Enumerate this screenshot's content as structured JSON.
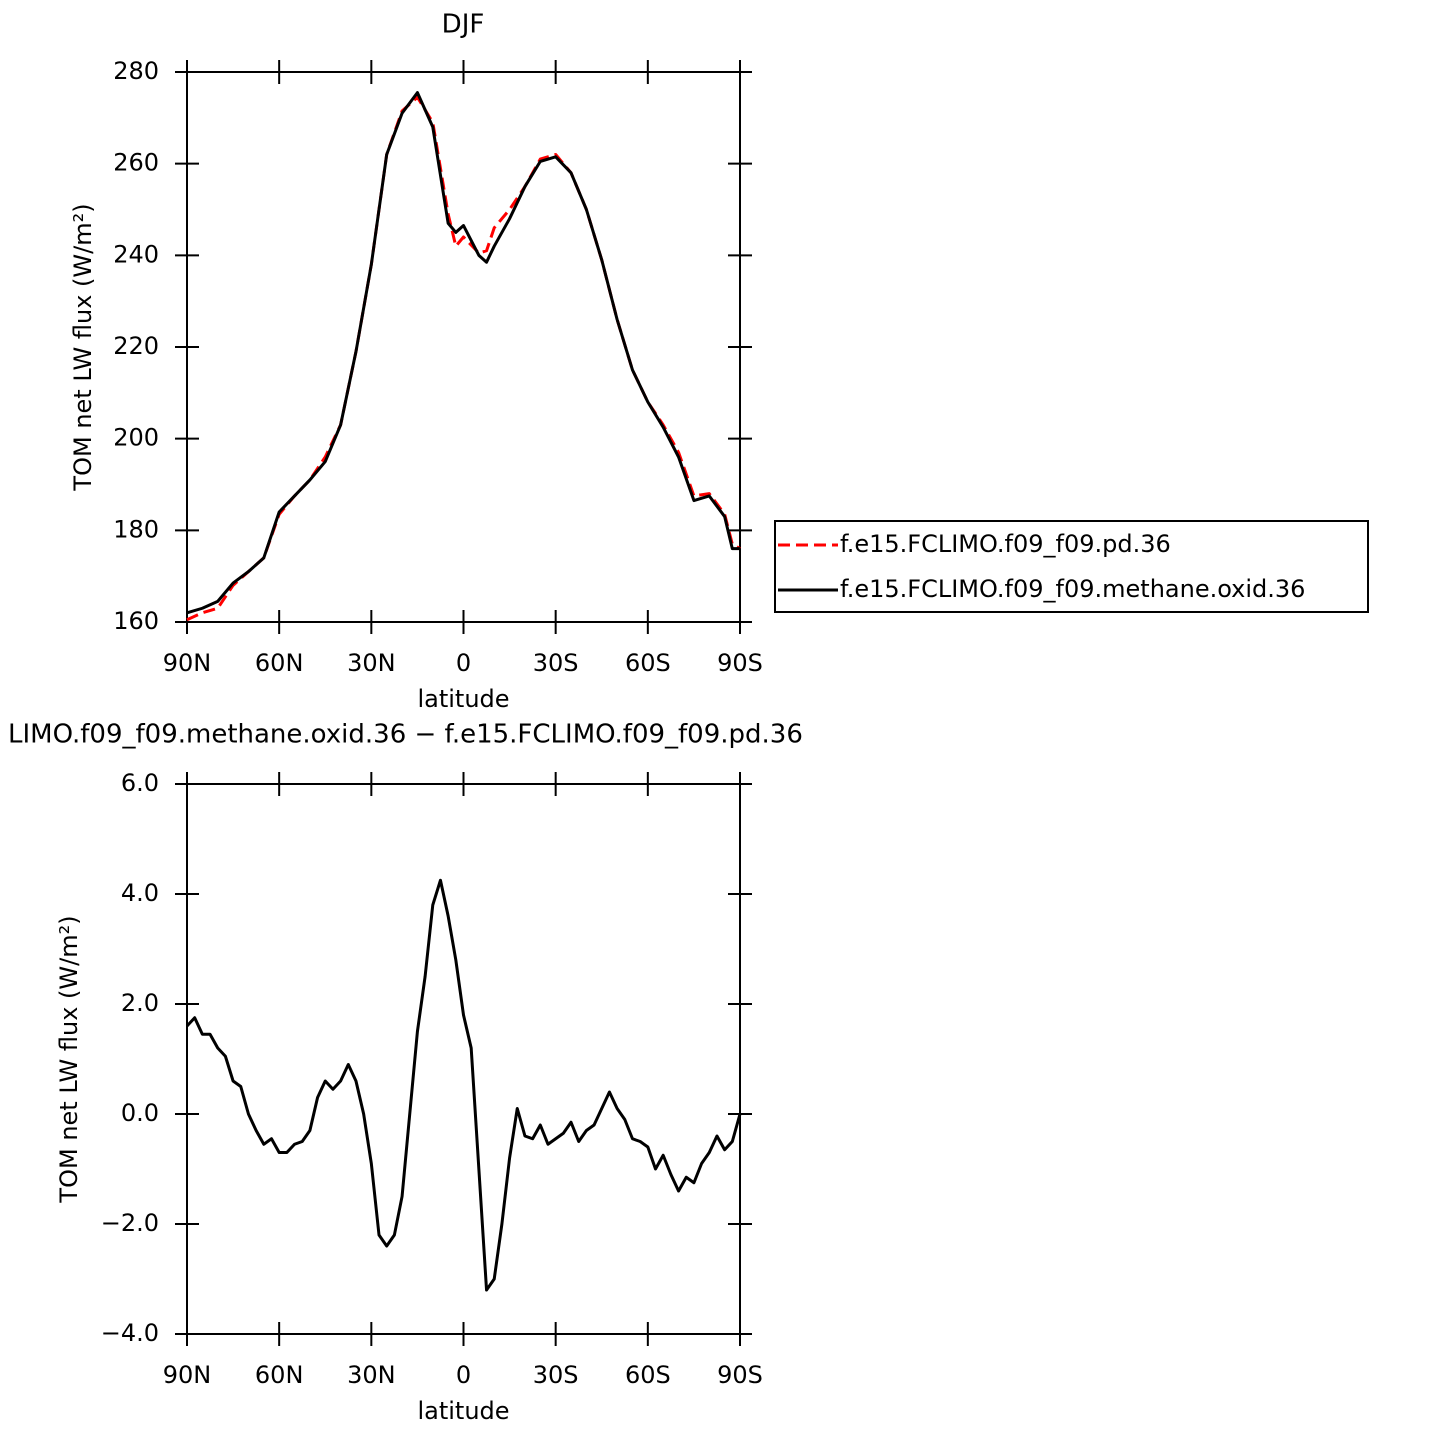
{
  "chart_data": [
    {
      "type": "line",
      "title": "DJF",
      "x_label": "latitude",
      "y_label": "TOM net LW flux (W/m²)",
      "x": [
        90,
        85,
        80,
        75,
        70,
        65,
        60,
        55,
        50,
        45,
        40,
        35,
        30,
        25,
        20,
        15,
        10,
        5,
        2.5,
        0,
        -5,
        -7.5,
        -10,
        -15,
        -20,
        -25,
        -30,
        -35,
        -40,
        -45,
        -50,
        -55,
        -60,
        -65,
        -70,
        -75,
        -80,
        -85,
        -87.5,
        -90
      ],
      "series": [
        {
          "name": "f.e15.FCLIMO.f09_f09.pd.36",
          "color": "#ff0000",
          "line_style": "dashed",
          "values": [
            160.5,
            162,
            163,
            168,
            171,
            174,
            183.5,
            187.5,
            191,
            196,
            203,
            219,
            238,
            262,
            271.5,
            274.5,
            269,
            249,
            242,
            244,
            240.5,
            241,
            246,
            250,
            255,
            261,
            262,
            258,
            250,
            239,
            226,
            215,
            208,
            203,
            197,
            187.5,
            188,
            183.5,
            177,
            176
          ]
        },
        {
          "name": "f.e15.FCLIMO.f09_f09.methane.oxid.36",
          "color": "#000000",
          "line_style": "solid",
          "values": [
            162,
            163,
            164.5,
            168.5,
            171,
            174,
            184,
            187.5,
            191,
            195,
            203,
            219,
            238,
            262,
            271,
            275.5,
            268,
            247,
            245,
            246.5,
            240,
            238.5,
            242,
            248,
            255,
            260.5,
            261.5,
            258,
            250,
            239,
            226,
            215,
            208,
            202.5,
            196,
            186.5,
            187.5,
            183,
            176,
            176
          ]
        }
      ],
      "xlim": [
        90,
        -90
      ],
      "xticks": [
        {
          "value": 90,
          "label": "90N"
        },
        {
          "value": 60,
          "label": "60N"
        },
        {
          "value": 30,
          "label": "30N"
        },
        0,
        {
          "value": -30,
          "label": "30S"
        },
        {
          "value": -60,
          "label": "60S"
        },
        {
          "value": -90,
          "label": "90S"
        }
      ],
      "ylim": [
        160,
        280
      ],
      "yticks": [
        160,
        180,
        200,
        220,
        240,
        260,
        280
      ],
      "legend": "right"
    },
    {
      "type": "line",
      "title": "LIMO.f09_f09.methane.oxid.36 − f.e15.FCLIMO.f09_f09.pd.36",
      "x_label": "latitude",
      "y_label": "TOM net LW flux (W/m²)",
      "x": [
        90,
        87.5,
        85,
        82.5,
        80,
        77.5,
        75,
        72.5,
        70,
        67.5,
        65,
        62.5,
        60,
        57.5,
        55,
        52.5,
        50,
        47.5,
        45,
        42.5,
        40,
        37.5,
        35,
        32.5,
        30,
        27.5,
        25,
        22.5,
        20,
        17.5,
        15,
        12.5,
        10,
        7.5,
        5,
        2.5,
        0,
        -2.5,
        -5,
        -7.5,
        -10,
        -12.5,
        -15,
        -17.5,
        -20,
        -22.5,
        -25,
        -27.5,
        -30,
        -32.5,
        -35,
        -37.5,
        -40,
        -42.5,
        -45,
        -47.5,
        -50,
        -52.5,
        -55,
        -57.5,
        -60,
        -62.5,
        -65,
        -67.5,
        -70,
        -72.5,
        -75,
        -77.5,
        -80,
        -82.5,
        -85,
        -87.5,
        -90
      ],
      "series": [
        {
          "color": "#000000",
          "line_style": "solid",
          "values": [
            1.6,
            1.75,
            1.45,
            1.45,
            1.2,
            1.05,
            0.6,
            0.5,
            0.0,
            -0.3,
            -0.55,
            -0.45,
            -0.7,
            -0.7,
            -0.55,
            -0.5,
            -0.3,
            0.3,
            0.6,
            0.45,
            0.6,
            0.9,
            0.6,
            0.0,
            -0.9,
            -2.2,
            -2.4,
            -2.2,
            -1.5,
            0.0,
            1.5,
            2.5,
            3.8,
            4.25,
            3.6,
            2.8,
            1.8,
            1.2,
            -1.0,
            -3.2,
            -3.0,
            -2.0,
            -0.8,
            0.1,
            -0.4,
            -0.45,
            -0.2,
            -0.55,
            -0.45,
            -0.35,
            -0.15,
            -0.5,
            -0.3,
            -0.2,
            0.1,
            0.4,
            0.1,
            -0.1,
            -0.45,
            -0.5,
            -0.6,
            -1.0,
            -0.75,
            -1.1,
            -1.4,
            -1.15,
            -1.25,
            -0.9,
            -0.7,
            -0.4,
            -0.65,
            -0.5,
            0.0
          ]
        }
      ],
      "xlim": [
        90,
        -90
      ],
      "xticks": [
        {
          "value": 90,
          "label": "90N"
        },
        {
          "value": 60,
          "label": "60N"
        },
        {
          "value": 30,
          "label": "30N"
        },
        0,
        {
          "value": -30,
          "label": "30S"
        },
        {
          "value": -60,
          "label": "60S"
        },
        {
          "value": -90,
          "label": "90S"
        }
      ],
      "ylim": [
        -4,
        6
      ],
      "yticks": [
        {
          "value": -4,
          "label": "−4.0"
        },
        {
          "value": -2,
          "label": "−2.0"
        },
        {
          "value": 0,
          "label": "0.0"
        },
        {
          "value": 2,
          "label": "2.0"
        },
        {
          "value": 4,
          "label": "4.0"
        },
        {
          "value": 6,
          "label": "6.0"
        }
      ]
    }
  ]
}
